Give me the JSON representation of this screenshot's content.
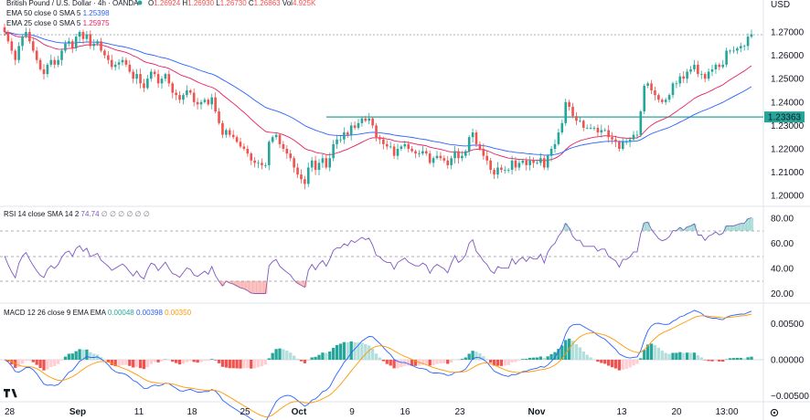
{
  "header": {
    "title": "British Pound / U.S. Dollar · 4h · OANDA",
    "ohlc": [
      {
        "k": "O",
        "v": "1.26924"
      },
      {
        "k": "H",
        "v": "1.26930"
      },
      {
        "k": "L",
        "v": "1.26730"
      },
      {
        "k": "C",
        "v": "1.26863"
      }
    ],
    "vol_label": "Vol",
    "vol_value": "4.925K",
    "currency": "USD"
  },
  "indicators": {
    "ema_label": "EMA 50 close 0 SMA 5",
    "ema_value": "1.25398",
    "sma_label": "EMA 25 close 0 SMA 5",
    "sma_value": "1.25975",
    "rsi_label": "RSI 14 close SMA 14 2",
    "rsi_value": "74.74",
    "rsi_placeholders": "∅ ∅ ∅ ∅ ∅ ∅",
    "macd_label": "MACD 12 26 close 9 EMA EMA",
    "macd_values": [
      "0.00048",
      "0.00398",
      "0.00350"
    ]
  },
  "price_axis": {
    "ticks": [
      "1.27000",
      "1.26000",
      "1.25000",
      "1.24000",
      "1.23000",
      "1.22000",
      "1.21000",
      "1.20000"
    ],
    "resistance_label": "1.23363",
    "resistance_value": 1.23363
  },
  "rsi_axis": {
    "ticks": [
      "80.00",
      "60.00",
      "40.00",
      "20.00"
    ]
  },
  "macd_axis": {
    "ticks": [
      "0.00500",
      "0.00000",
      "−0.00500"
    ]
  },
  "time_axis": {
    "labels": [
      "28",
      "Sep",
      "11",
      "18",
      "25",
      "Oct",
      "9",
      "16",
      "23",
      "Nov",
      "13",
      "20",
      "13:00"
    ]
  },
  "colors": {
    "up": "#26a69a",
    "down": "#ef5350",
    "ema50": "#2962ff",
    "ema25": "#e91e63",
    "rsi": "#7e57c2",
    "macd": "#2962ff",
    "signal": "#ff9800",
    "resistance": "#26a69a"
  },
  "chart_data": {
    "type": "candlestick",
    "instrument": "GBP/USD",
    "timeframe": "4h",
    "price_range": [
      1.2,
      1.272
    ],
    "closes": [
      1.27,
      1.266,
      1.262,
      1.258,
      1.264,
      1.268,
      1.27,
      1.266,
      1.262,
      1.258,
      1.254,
      1.252,
      1.256,
      1.258,
      1.256,
      1.258,
      1.262,
      1.265,
      1.266,
      1.263,
      1.268,
      1.27,
      1.267,
      1.269,
      1.264,
      1.265,
      1.266,
      1.262,
      1.26,
      1.258,
      1.255,
      1.256,
      1.257,
      1.258,
      1.256,
      1.253,
      1.25,
      1.252,
      1.248,
      1.246,
      1.25,
      1.253,
      1.252,
      1.248,
      1.25,
      1.252,
      1.248,
      1.244,
      1.243,
      1.241,
      1.243,
      1.245,
      1.244,
      1.24,
      1.239,
      1.24,
      1.241,
      1.239,
      1.242,
      1.236,
      1.231,
      1.226,
      1.228,
      1.226,
      1.225,
      1.223,
      1.221,
      1.22,
      1.218,
      1.215,
      1.214,
      1.214,
      1.213,
      1.213,
      1.223,
      1.225,
      1.226,
      1.222,
      1.22,
      1.218,
      1.216,
      1.212,
      1.209,
      1.207,
      1.205,
      1.212,
      1.215,
      1.211,
      1.214,
      1.216,
      1.212,
      1.216,
      1.222,
      1.224,
      1.224,
      1.227,
      1.226,
      1.23,
      1.229,
      1.231,
      1.233,
      1.232,
      1.233,
      1.23,
      1.225,
      1.224,
      1.222,
      1.221,
      1.221,
      1.217,
      1.22,
      1.221,
      1.222,
      1.22,
      1.219,
      1.218,
      1.218,
      1.219,
      1.218,
      1.214,
      1.216,
      1.217,
      1.216,
      1.215,
      1.213,
      1.216,
      1.219,
      1.216,
      1.217,
      1.219,
      1.225,
      1.227,
      1.222,
      1.22,
      1.217,
      1.215,
      1.211,
      1.209,
      1.212,
      1.211,
      1.211,
      1.211,
      1.215,
      1.212,
      1.214,
      1.215,
      1.213,
      1.215,
      1.214,
      1.214,
      1.216,
      1.212,
      1.217,
      1.22,
      1.222,
      1.227,
      1.231,
      1.24,
      1.238,
      1.234,
      1.232,
      1.232,
      1.229,
      1.229,
      1.229,
      1.229,
      1.227,
      1.228,
      1.228,
      1.225,
      1.224,
      1.223,
      1.22,
      1.223,
      1.223,
      1.224,
      1.226,
      1.226,
      1.236,
      1.247,
      1.248,
      1.245,
      1.243,
      1.241,
      1.24,
      1.241,
      1.243,
      1.248,
      1.248,
      1.251,
      1.25,
      1.253,
      1.254,
      1.256,
      1.252,
      1.252,
      1.25,
      1.253,
      1.254,
      1.256,
      1.255,
      1.256,
      1.262,
      1.262,
      1.262,
      1.263,
      1.264,
      1.264,
      1.268,
      1.269
    ]
  }
}
